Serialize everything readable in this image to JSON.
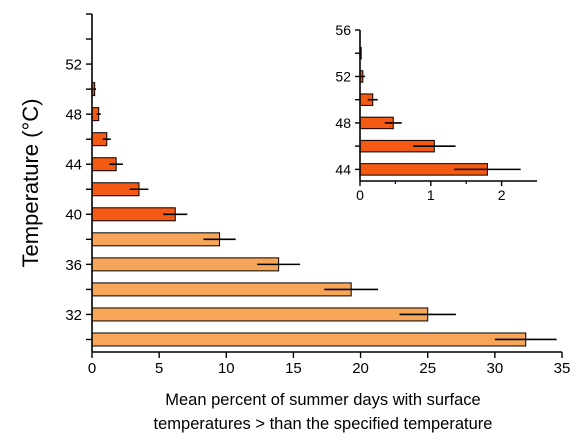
{
  "chart_data": [
    {
      "type": "bar",
      "orientation": "horizontal",
      "xlabel": "Mean percent of summer days with surface temperatures > than the specified temperature",
      "xlabel_lines": [
        "Mean percent of summer days with surface",
        "temperatures > than the specified temperature"
      ],
      "ylabel": "Temperature (°C)",
      "xlim": [
        0,
        35
      ],
      "ylim": [
        29,
        56
      ],
      "x_ticks": [
        "0",
        "5",
        "10",
        "15",
        "20",
        "25",
        "30",
        "35"
      ],
      "y_ticks": [
        "32",
        "36",
        "40",
        "44",
        "48",
        "52"
      ],
      "grid": false,
      "series": [
        {
          "temperatures": [
            30,
            32,
            34,
            36,
            38,
            40,
            42,
            44,
            46,
            48,
            50
          ],
          "values": [
            32.3,
            25.0,
            19.3,
            13.9,
            9.5,
            6.2,
            3.5,
            1.8,
            1.1,
            0.5,
            0.2
          ],
          "errors": [
            2.3,
            2.1,
            2.0,
            1.6,
            1.2,
            0.9,
            0.7,
            0.5,
            0.3,
            0.15,
            0.1
          ],
          "colors": [
            "#F7A659",
            "#F7A659",
            "#F7A659",
            "#F7A659",
            "#F7A659",
            "#F45A13",
            "#F45A13",
            "#F45A13",
            "#F45A13",
            "#F45A13",
            "#F45A13"
          ]
        }
      ]
    },
    {
      "type": "bar",
      "orientation": "horizontal",
      "inset": true,
      "xlim": [
        0,
        2.5
      ],
      "ylim": [
        43,
        56
      ],
      "x_ticks": [
        "0",
        "1",
        "2"
      ],
      "y_ticks": [
        "44",
        "48",
        "52",
        "56"
      ],
      "series": [
        {
          "temperatures": [
            44,
            46,
            48,
            50,
            52,
            54
          ],
          "values": [
            1.8,
            1.05,
            0.47,
            0.18,
            0.04,
            0.01
          ],
          "errors": [
            0.47,
            0.3,
            0.12,
            0.07,
            0.03,
            0.01
          ],
          "colors": [
            "#F45A13",
            "#F45A13",
            "#F45A13",
            "#F45A13",
            "#F45A13",
            "#F45A13"
          ]
        }
      ]
    }
  ]
}
